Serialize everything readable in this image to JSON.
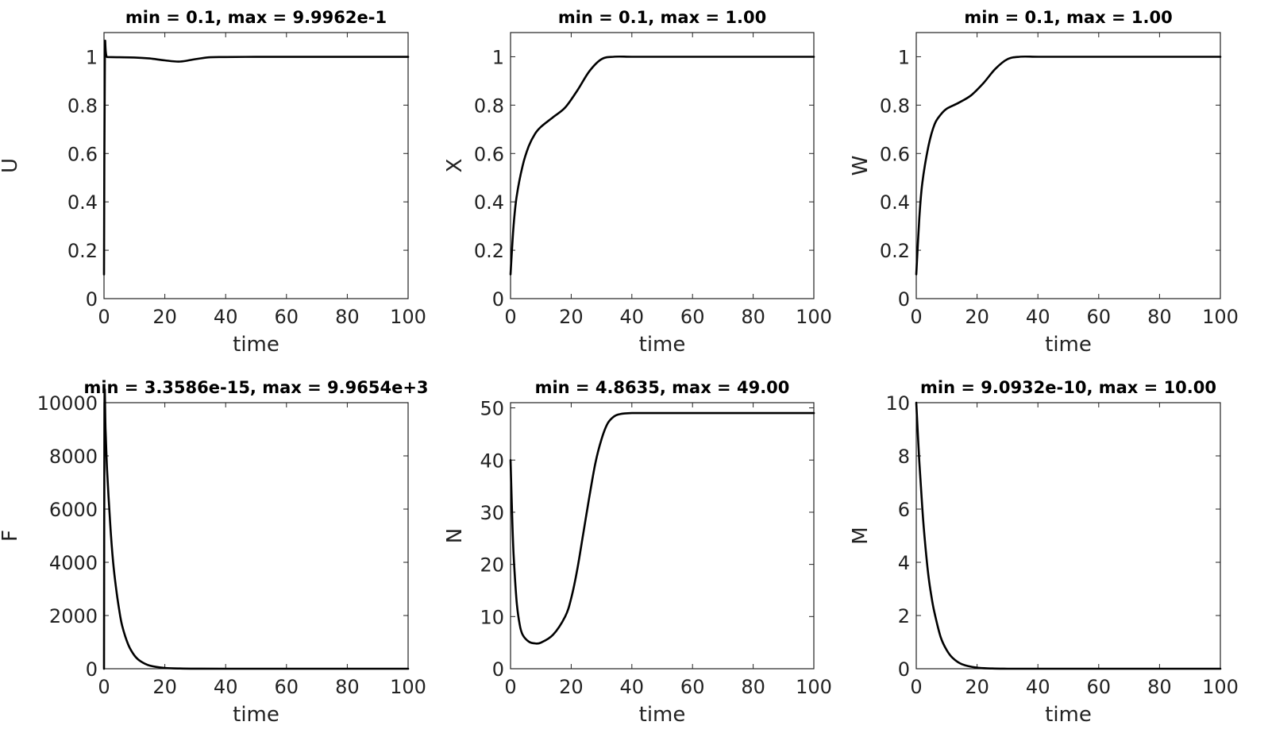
{
  "chart_data": [
    {
      "type": "line",
      "title": "min = 0.1, max = 9.9962e-1",
      "xlabel": "time",
      "ylabel": "U",
      "xlim": [
        0,
        100
      ],
      "ylim": [
        0,
        1.1
      ],
      "xticks": [
        0,
        20,
        40,
        60,
        80,
        100
      ],
      "yticks": [
        0,
        0.2,
        0.4,
        0.6,
        0.8,
        1
      ],
      "xtick_labels": [
        "0",
        "20",
        "40",
        "60",
        "80",
        "100"
      ],
      "ytick_labels": [
        "0",
        "0.2",
        "0.4",
        "0.6",
        "0.8",
        "1"
      ],
      "series": [
        {
          "x": [
            0,
            0.3,
            1,
            5,
            10,
            15,
            20,
            25,
            30,
            35,
            40,
            50,
            60,
            80,
            100
          ],
          "y": [
            0.1,
            1.0,
            0.999,
            0.998,
            0.997,
            0.993,
            0.985,
            0.98,
            0.99,
            0.998,
            0.999,
            0.9996,
            0.9996,
            0.9996,
            0.9996
          ]
        }
      ],
      "grid": false
    },
    {
      "type": "line",
      "title": "min = 0.1, max = 1.00",
      "xlabel": "time",
      "ylabel": "X",
      "xlim": [
        0,
        100
      ],
      "ylim": [
        0,
        1.1
      ],
      "xticks": [
        0,
        20,
        40,
        60,
        80,
        100
      ],
      "yticks": [
        0,
        0.2,
        0.4,
        0.6,
        0.8,
        1
      ],
      "xtick_labels": [
        "0",
        "20",
        "40",
        "60",
        "80",
        "100"
      ],
      "ytick_labels": [
        "0",
        "0.2",
        "0.4",
        "0.6",
        "0.8",
        "1"
      ],
      "series": [
        {
          "x": [
            0,
            1,
            2,
            4,
            6,
            8,
            10,
            14,
            18,
            22,
            26,
            30,
            34,
            40,
            50,
            60,
            80,
            100
          ],
          "y": [
            0.1,
            0.3,
            0.42,
            0.55,
            0.63,
            0.68,
            0.71,
            0.75,
            0.79,
            0.86,
            0.94,
            0.99,
            1.0,
            1.0,
            1.0,
            1.0,
            1.0,
            1.0
          ]
        }
      ],
      "grid": false
    },
    {
      "type": "line",
      "title": "min = 0.1, max = 1.00",
      "xlabel": "time",
      "ylabel": "W",
      "xlim": [
        0,
        100
      ],
      "ylim": [
        0,
        1.1
      ],
      "xticks": [
        0,
        20,
        40,
        60,
        80,
        100
      ],
      "yticks": [
        0,
        0.2,
        0.4,
        0.6,
        0.8,
        1
      ],
      "xtick_labels": [
        "0",
        "20",
        "40",
        "60",
        "80",
        "100"
      ],
      "ytick_labels": [
        "0",
        "0.2",
        "0.4",
        "0.6",
        "0.8",
        "1"
      ],
      "series": [
        {
          "x": [
            0,
            1,
            2,
            4,
            6,
            8,
            10,
            14,
            18,
            22,
            26,
            30,
            34,
            40,
            50,
            60,
            80,
            100
          ],
          "y": [
            0.1,
            0.33,
            0.48,
            0.63,
            0.72,
            0.76,
            0.785,
            0.81,
            0.84,
            0.89,
            0.95,
            0.99,
            1.0,
            1.0,
            1.0,
            1.0,
            1.0,
            1.0
          ]
        }
      ],
      "grid": false
    },
    {
      "type": "line",
      "title": "min = 3.3586e-15, max = 9.9654e+3",
      "xlabel": "time",
      "ylabel": "F",
      "xlim": [
        0,
        100
      ],
      "ylim": [
        0,
        10000
      ],
      "xticks": [
        0,
        20,
        40,
        60,
        80,
        100
      ],
      "yticks": [
        0,
        2000,
        4000,
        6000,
        8000,
        10000
      ],
      "xtick_labels": [
        "0",
        "20",
        "40",
        "60",
        "80",
        "100"
      ],
      "ytick_labels": [
        "0",
        "2000",
        "4000",
        "6000",
        "8000",
        "10000"
      ],
      "series": [
        {
          "x": [
            0,
            0.15,
            0.5,
            1,
            2,
            3,
            4,
            5,
            6,
            8,
            10,
            12,
            15,
            20,
            25,
            30,
            40,
            60,
            80,
            100
          ],
          "y": [
            0,
            9965,
            9000,
            7500,
            5500,
            4000,
            3000,
            2200,
            1600,
            900,
            500,
            280,
            120,
            30,
            8,
            2,
            0,
            0,
            0,
            0
          ]
        }
      ],
      "grid": false
    },
    {
      "type": "line",
      "title": "min = 4.8635, max = 49.00",
      "xlabel": "time",
      "ylabel": "N",
      "xlim": [
        0,
        100
      ],
      "ylim": [
        0,
        51
      ],
      "xticks": [
        0,
        20,
        40,
        60,
        80,
        100
      ],
      "yticks": [
        0,
        10,
        20,
        30,
        40,
        50
      ],
      "xtick_labels": [
        "0",
        "20",
        "40",
        "60",
        "80",
        "100"
      ],
      "ytick_labels": [
        "0",
        "10",
        "20",
        "30",
        "40",
        "50"
      ],
      "series": [
        {
          "x": [
            0,
            0.5,
            1,
            2,
            3,
            4,
            6,
            8,
            10,
            14,
            18,
            20,
            22,
            24,
            26,
            28,
            30,
            32,
            34,
            36,
            40,
            50,
            60,
            80,
            100
          ],
          "y": [
            40,
            30,
            22,
            13,
            8.5,
            6.5,
            5.2,
            4.86,
            5.0,
            6.5,
            10,
            13.5,
            19,
            26,
            33,
            39.5,
            44,
            47,
            48.3,
            48.8,
            49,
            49,
            49,
            49,
            49
          ]
        }
      ],
      "grid": false
    },
    {
      "type": "line",
      "title": "min = 9.0932e-10, max = 10.00",
      "xlabel": "time",
      "ylabel": "M",
      "xlim": [
        0,
        100
      ],
      "ylim": [
        0,
        10
      ],
      "xticks": [
        0,
        20,
        40,
        60,
        80,
        100
      ],
      "yticks": [
        0,
        2,
        4,
        6,
        8,
        10
      ],
      "xtick_labels": [
        "0",
        "20",
        "40",
        "60",
        "80",
        "100"
      ],
      "ytick_labels": [
        "0",
        "2",
        "4",
        "6",
        "8",
        "10"
      ],
      "series": [
        {
          "x": [
            0,
            1,
            2,
            3,
            4,
            5,
            6,
            8,
            10,
            12,
            15,
            20,
            25,
            30,
            40,
            60,
            80,
            100
          ],
          "y": [
            10,
            7.8,
            6.0,
            4.6,
            3.5,
            2.7,
            2.1,
            1.2,
            0.7,
            0.4,
            0.17,
            0.04,
            0.01,
            0,
            0,
            0,
            0,
            0
          ]
        }
      ],
      "grid": false
    }
  ]
}
